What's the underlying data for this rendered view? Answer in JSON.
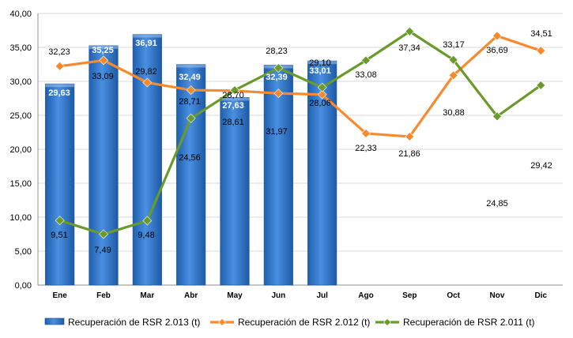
{
  "chart_data": {
    "type": "bar",
    "categories": [
      "Ene",
      "Feb",
      "Mar",
      "Abr",
      "May",
      "Jun",
      "Jul",
      "Ago",
      "Sep",
      "Oct",
      "Nov",
      "Dic"
    ],
    "ylim": [
      0,
      40
    ],
    "yticks": [
      "0,00",
      "5,00",
      "10,00",
      "15,00",
      "20,00",
      "25,00",
      "30,00",
      "35,00",
      "40,00"
    ],
    "grid": true,
    "legend_position": "bottom",
    "series": [
      {
        "name": "Recuperación de RSR 2.013 (t)",
        "type": "bar",
        "color": "#2e75c8",
        "values": [
          29.63,
          35.25,
          36.91,
          32.49,
          27.63,
          32.39,
          33.01,
          null,
          null,
          null,
          null,
          null
        ],
        "labels": [
          "29,63",
          "35,25",
          "36,91",
          "32,49",
          "27,63",
          "32,39",
          "33,01",
          "",
          "",
          "",
          "",
          ""
        ]
      },
      {
        "name": "Recuperación de RSR 2.012 (t)",
        "type": "line",
        "color": "#f78a2e",
        "values": [
          32.23,
          33.09,
          29.82,
          28.71,
          28.61,
          28.23,
          28.06,
          22.33,
          21.86,
          30.88,
          36.69,
          34.51
        ],
        "labels": [
          "32,23",
          "33,09",
          "29,82",
          "28,71",
          "28,61",
          "28,23",
          "28,06",
          "22,33",
          "21,86",
          "30,88",
          "36,69",
          "34,51"
        ]
      },
      {
        "name": "Recuperación de RSR 2.011 (t)",
        "type": "line",
        "color": "#6a9a2c",
        "values": [
          9.51,
          7.49,
          9.48,
          24.56,
          28.7,
          31.97,
          29.1,
          33.08,
          37.34,
          33.17,
          24.85,
          29.42
        ],
        "labels": [
          "9,51",
          "7,49",
          "9,48",
          "24,56",
          "28,70",
          "31,97",
          "29,10",
          "33,08",
          "37,34",
          "33,17",
          "24,85",
          "29,42"
        ]
      }
    ]
  }
}
